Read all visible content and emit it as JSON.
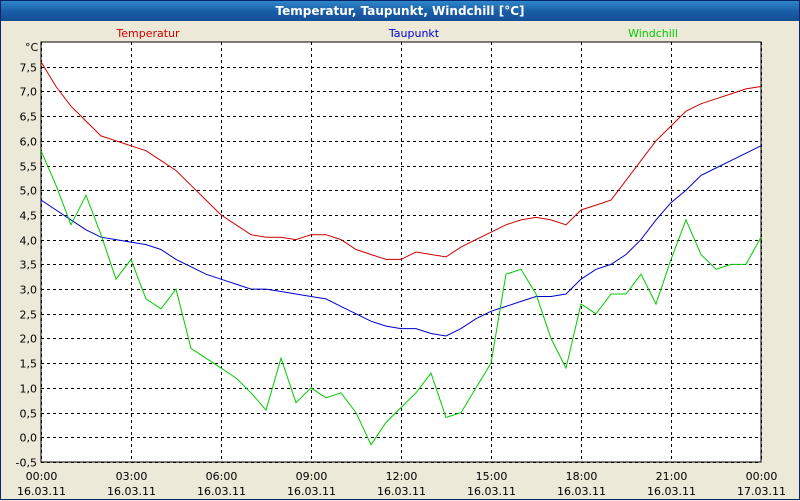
{
  "window": {
    "title": "Temperatur, Taupunkt, Windchill [°C]"
  },
  "chart_data": {
    "type": "line",
    "title": "Temperatur, Taupunkt, Windchill [°C]",
    "unit_label": "°C",
    "ylim": [
      -0.5,
      8.0
    ],
    "xlim": [
      0,
      24
    ],
    "grid": true,
    "legend_placement": "top",
    "y_ticks": [
      "7,5",
      "7,0",
      "6,5",
      "6,0",
      "5,5",
      "5,0",
      "4,5",
      "4,0",
      "3,5",
      "3,0",
      "2,5",
      "2,0",
      "1,5",
      "1,0",
      "0,5",
      "0,0",
      "-0,5"
    ],
    "x_ticks": [
      {
        "time": "00:00",
        "date": "16.03.11"
      },
      {
        "time": "03:00",
        "date": "16.03.11"
      },
      {
        "time": "06:00",
        "date": "16.03.11"
      },
      {
        "time": "09:00",
        "date": "16.03.11"
      },
      {
        "time": "12:00",
        "date": "16.03.11"
      },
      {
        "time": "15:00",
        "date": "16.03.11"
      },
      {
        "time": "18:00",
        "date": "16.03.11"
      },
      {
        "time": "21:00",
        "date": "16.03.11"
      },
      {
        "time": "00:00",
        "date": "17.03.11"
      }
    ],
    "x_unit": "hours",
    "series": [
      {
        "name": "Temperatur",
        "color": "#cc0000",
        "x": [
          0,
          0.5,
          1,
          1.5,
          2,
          2.5,
          3,
          3.5,
          4,
          4.5,
          5,
          5.5,
          6,
          6.5,
          7,
          7.5,
          8,
          8.5,
          9,
          9.5,
          10,
          10.5,
          11,
          11.5,
          12,
          12.5,
          13,
          13.5,
          14,
          14.5,
          15,
          15.5,
          16,
          16.5,
          17,
          17.5,
          18,
          18.5,
          19,
          19.5,
          20,
          20.5,
          21,
          21.5,
          22,
          22.5,
          23,
          23.5,
          24
        ],
        "values": [
          7.6,
          7.1,
          6.7,
          6.4,
          6.1,
          6.0,
          5.9,
          5.8,
          5.6,
          5.4,
          5.1,
          4.8,
          4.5,
          4.3,
          4.1,
          4.05,
          4.05,
          4.0,
          4.1,
          4.1,
          4.0,
          3.8,
          3.7,
          3.6,
          3.6,
          3.75,
          3.7,
          3.65,
          3.85,
          4.0,
          4.15,
          4.3,
          4.4,
          4.45,
          4.4,
          4.3,
          4.6,
          4.7,
          4.8,
          5.2,
          5.6,
          6.0,
          6.3,
          6.6,
          6.75,
          6.85,
          6.95,
          7.05,
          7.1
        ]
      },
      {
        "name": "Taupunkt",
        "color": "#0000cc",
        "x": [
          0,
          0.5,
          1,
          1.5,
          2,
          2.5,
          3,
          3.5,
          4,
          4.5,
          5,
          5.5,
          6,
          6.5,
          7,
          7.5,
          8,
          8.5,
          9,
          9.5,
          10,
          10.5,
          11,
          11.5,
          12,
          12.5,
          13,
          13.5,
          14,
          14.5,
          15,
          15.5,
          16,
          16.5,
          17,
          17.5,
          18,
          18.5,
          19,
          19.5,
          20,
          20.5,
          21,
          21.5,
          22,
          22.5,
          23,
          23.5,
          24
        ],
        "values": [
          4.8,
          4.6,
          4.4,
          4.2,
          4.05,
          4.0,
          3.95,
          3.9,
          3.8,
          3.6,
          3.45,
          3.3,
          3.2,
          3.1,
          3.0,
          3.0,
          2.95,
          2.9,
          2.85,
          2.8,
          2.65,
          2.5,
          2.35,
          2.25,
          2.2,
          2.2,
          2.1,
          2.05,
          2.2,
          2.4,
          2.55,
          2.65,
          2.75,
          2.85,
          2.85,
          2.9,
          3.2,
          3.4,
          3.5,
          3.7,
          4.0,
          4.4,
          4.75,
          5.0,
          5.3,
          5.45,
          5.6,
          5.75,
          5.9
        ]
      },
      {
        "name": "Windchill",
        "color": "#00cc00",
        "x": [
          0,
          0.5,
          1,
          1.5,
          2,
          2.5,
          3,
          3.5,
          4,
          4.5,
          5,
          5.5,
          6,
          6.5,
          7,
          7.5,
          8,
          8.5,
          9,
          9.5,
          10,
          10.5,
          11,
          11.5,
          12,
          12.5,
          13,
          13.5,
          14,
          14.5,
          15,
          15.5,
          16,
          16.5,
          17,
          17.5,
          18,
          18.5,
          19,
          19.5,
          20,
          20.5,
          21,
          21.5,
          22,
          22.5,
          23,
          23.5,
          24
        ],
        "values": [
          5.8,
          5.1,
          4.3,
          4.9,
          4.1,
          3.2,
          3.6,
          2.8,
          2.6,
          3.0,
          1.8,
          1.6,
          1.4,
          1.2,
          0.9,
          0.55,
          1.6,
          0.7,
          1.0,
          0.8,
          0.9,
          0.5,
          -0.15,
          0.3,
          0.6,
          0.9,
          1.3,
          0.4,
          0.5,
          1.0,
          1.5,
          3.3,
          3.4,
          2.9,
          2.0,
          1.4,
          2.7,
          2.5,
          2.9,
          2.9,
          3.3,
          2.7,
          3.6,
          4.4,
          3.7,
          3.4,
          3.5,
          3.5,
          4.05
        ]
      }
    ]
  }
}
